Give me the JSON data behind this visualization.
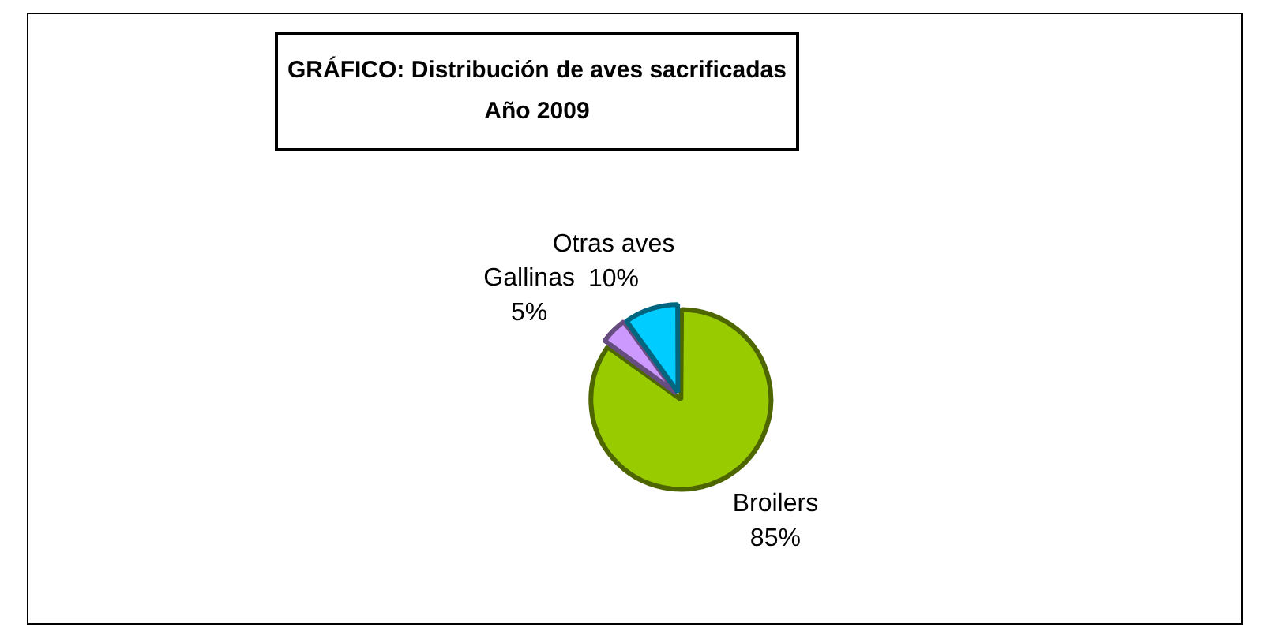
{
  "chart_data": {
    "type": "pie",
    "title": "GRÁFICO: Distribución de aves sacrificadas",
    "subtitle": "Año 2009",
    "categories": [
      "Broilers",
      "Gallinas",
      "Otras aves"
    ],
    "values": [
      85,
      5,
      10
    ],
    "colors": [
      "#99cc00",
      "#cc99ff",
      "#00ccff"
    ],
    "value_labels": [
      "85%",
      "5%",
      "10%"
    ],
    "legend": false
  }
}
